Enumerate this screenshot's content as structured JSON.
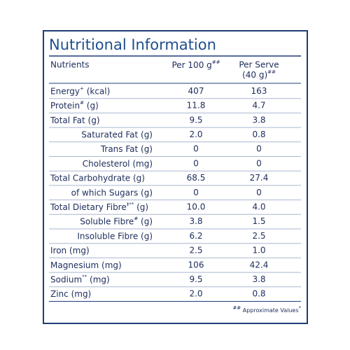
{
  "title": "Nutritional Information",
  "header": {
    "nutrients": "Nutrients",
    "per100": {
      "label": "Per 100 g",
      "sup": "##"
    },
    "perServe": {
      "line1": "Per Serve",
      "line2": "(40 g)",
      "sup": "##"
    }
  },
  "rows": [
    {
      "label": "Energy",
      "sup": "+",
      "unit": " (kcal)",
      "indent": false,
      "per100": "407",
      "perServe": "163"
    },
    {
      "label": "Protein",
      "sup": "#",
      "unit": " (g)",
      "indent": false,
      "per100": "11.8",
      "perServe": "4.7"
    },
    {
      "label": "Total Fat (g)",
      "indent": false,
      "per100": "9.5",
      "perServe": "3.8"
    },
    {
      "label": "Saturated Fat (g)",
      "indent": true,
      "per100": "2.0",
      "perServe": "0.8"
    },
    {
      "label": "Trans Fat (g)",
      "indent": true,
      "per100": "0",
      "perServe": "0"
    },
    {
      "label": "Cholesterol (mg)",
      "indent": true,
      "per100": "0",
      "perServe": "0"
    },
    {
      "label": "Total Carbohydrate (g)",
      "indent": false,
      "per100": "68.5",
      "perServe": "27.4"
    },
    {
      "label": "of which Sugars (g)",
      "indent": true,
      "per100": "0",
      "perServe": "0"
    },
    {
      "label": "Total Dietary Fibre",
      "sup": "‡**",
      "unit": " (g)",
      "indent": false,
      "per100": "10.0",
      "perServe": "4.0"
    },
    {
      "label": "Soluble Fibre",
      "sup": "#",
      "unit": " (g)",
      "indent": true,
      "per100": "3.8",
      "perServe": "1.5"
    },
    {
      "label": "Insoluble Fibre (g)",
      "indent": true,
      "per100": "6.2",
      "perServe": "2.5"
    },
    {
      "label": "Iron (mg)",
      "indent": false,
      "per100": "2.5",
      "perServe": "1.0"
    },
    {
      "label": "Magnesium (mg)",
      "indent": false,
      "per100": "106",
      "perServe": "42.4"
    },
    {
      "label": "Sodium",
      "sup": "**",
      "unit": " (mg)",
      "indent": false,
      "per100": "9.5",
      "perServe": "3.8"
    },
    {
      "label": "Zinc (mg)",
      "indent": false,
      "per100": "2.0",
      "perServe": "0.8"
    }
  ],
  "footnote": {
    "sup": "##",
    "text": " Approximate Values",
    "sup2": "*"
  }
}
